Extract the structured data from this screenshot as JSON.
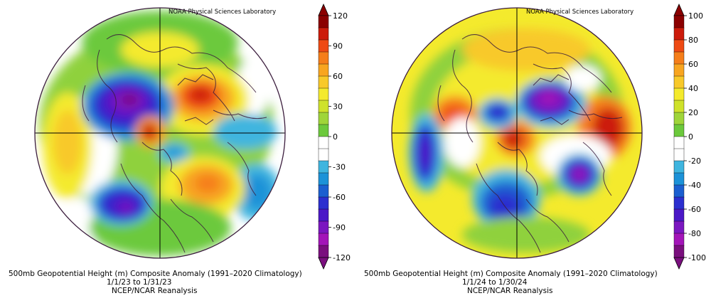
{
  "panels": [
    {
      "credit": "NOAA Physical Sciences Laboratory",
      "caption_line1": "500mb Geopotential Height (m) Composite Anomaly (1991–2020 Climatology)",
      "caption_line2": "1/1/23   to 1/31/23",
      "caption_line3": "NCEP/NCAR Reanalysis",
      "colorbar": {
        "labels": [
          "120",
          "90",
          "60",
          "30",
          "0",
          "-30",
          "-60",
          "-90",
          "-120"
        ],
        "colors": [
          "#8b0000",
          "#cc1b0b",
          "#ee4a14",
          "#f57e1a",
          "#f8a520",
          "#f8c92a",
          "#f4ea2d",
          "#cfe22b",
          "#9fd53a",
          "#6cc93c",
          "#ffffff",
          "#ffffff",
          "#3fb5df",
          "#1c92d8",
          "#1b5fd0",
          "#2c2fcf",
          "#4b18c7",
          "#7b17c0",
          "#a315b8",
          "#7a0f7e"
        ]
      }
    },
    {
      "credit": "NOAA Physical Sciences Laboratory",
      "caption_line1": "500mb Geopotential Height (m) Composite Anomaly (1991–2020 Climatology)",
      "caption_line2": "1/1/24   to 1/30/24",
      "caption_line3": "NCEP/NCAR Reanalysis",
      "colorbar": {
        "labels": [
          "100",
          "80",
          "60",
          "40",
          "20",
          "0",
          "-20",
          "-40",
          "-60",
          "-80",
          "-100"
        ],
        "colors": [
          "#8b0000",
          "#cc1b0b",
          "#ee4a14",
          "#f57e1a",
          "#f8a520",
          "#f8c92a",
          "#f4ea2d",
          "#cfe22b",
          "#9fd53a",
          "#6cc93c",
          "#ffffff",
          "#ffffff",
          "#3fb5df",
          "#1c92d8",
          "#1b5fd0",
          "#2c2fcf",
          "#4b18c7",
          "#7b17c0",
          "#a315b8",
          "#7a0f7e"
        ]
      }
    }
  ]
}
